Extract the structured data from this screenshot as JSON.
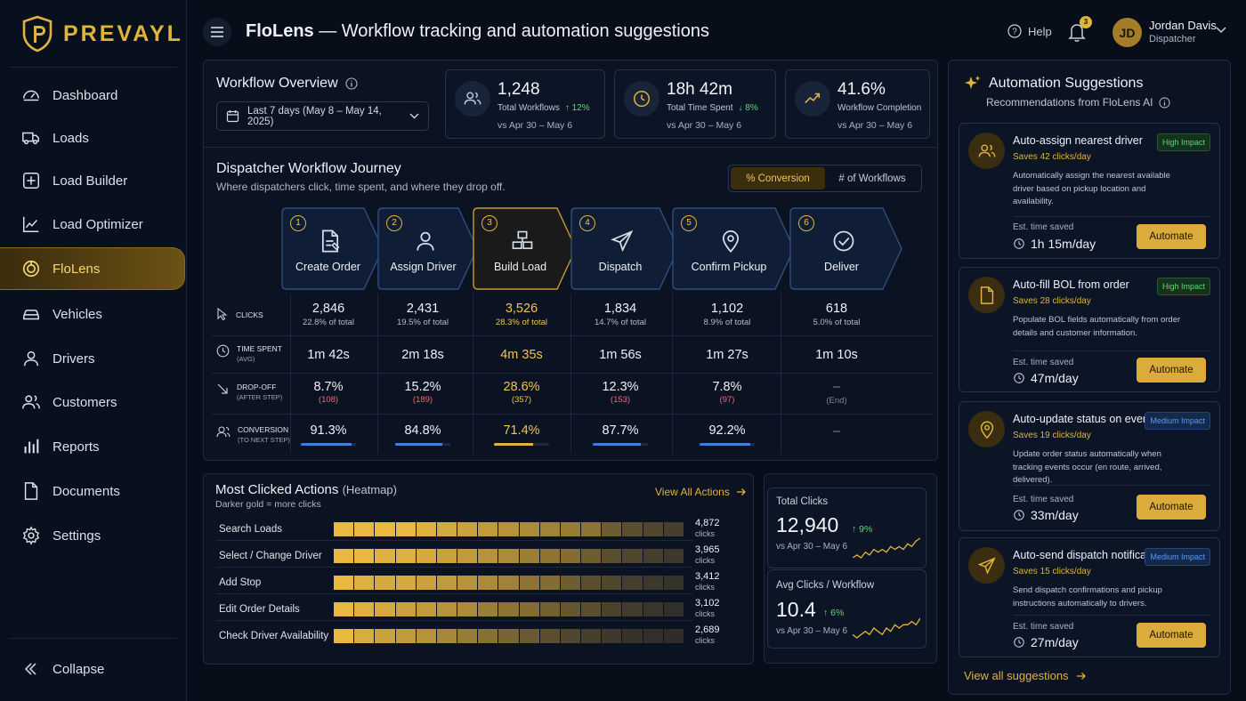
{
  "brand": {
    "name": "PREVAYL",
    "app": "FloLens",
    "subtitle": "— Workflow tracking and automation suggestions"
  },
  "sidebar": {
    "items": [
      {
        "label": "Dashboard",
        "icon": "gauge-icon"
      },
      {
        "label": "Loads",
        "icon": "truck-icon"
      },
      {
        "label": "Load Builder",
        "icon": "plus-square-icon"
      },
      {
        "label": "Load Optimizer",
        "icon": "trend-line-icon"
      },
      {
        "label": "FloLens",
        "icon": "lens-icon",
        "active": true
      },
      {
        "label": "Vehicles",
        "icon": "car-icon"
      },
      {
        "label": "Drivers",
        "icon": "person-icon"
      },
      {
        "label": "Customers",
        "icon": "people-icon"
      },
      {
        "label": "Reports",
        "icon": "bar-chart-icon"
      },
      {
        "label": "Documents",
        "icon": "document-icon"
      },
      {
        "label": "Settings",
        "icon": "gear-icon"
      }
    ],
    "collapse": "Collapse"
  },
  "header": {
    "help": "Help",
    "notifications": "3",
    "user": {
      "initials": "JD",
      "name": "Jordan Davis",
      "role": "Dispatcher"
    }
  },
  "overview": {
    "title": "Workflow Overview",
    "date_range": "Last 7 days (May 8 – May 14, 2025)",
    "kpis": [
      {
        "value": "1,248",
        "label": "Total Workflows",
        "trend": "↑ 12%",
        "compare": "vs Apr 30 – May 6",
        "icon": "users-icon"
      },
      {
        "value": "18h 42m",
        "label": "Total Time Spent",
        "trend": "↓ 8%",
        "compare": "vs Apr 30 – May 6",
        "icon": "clock-icon"
      },
      {
        "value": "41.6%",
        "label": "Workflow Completion",
        "trend": "",
        "compare": "vs Apr 30 – May 6",
        "icon": "trend-up-icon"
      }
    ]
  },
  "journey": {
    "title": "Dispatcher Workflow Journey",
    "subtitle": "Where dispatchers click, time spent, and where they drop off.",
    "toggle": [
      "% Conversion",
      "# of Workflows"
    ],
    "row_labels": {
      "clicks": "CLICKS",
      "time": "TIME SPENT",
      "time_sub": "(AVG)",
      "dropoff": "DROP-OFF",
      "dropoff_sub": "(AFTER STEP)",
      "conversion": "CONVERSION",
      "conversion_sub": "(TO NEXT STEP)"
    },
    "steps": [
      {
        "num": "1",
        "name": "Create Order",
        "clicks": "2,846",
        "share": "22.8% of total",
        "time": "1m 42s",
        "dropoff": "8.7%",
        "dropoff_count": "(108)",
        "conversion": "91.3%",
        "conversion_pct": 91.3
      },
      {
        "num": "2",
        "name": "Assign Driver",
        "clicks": "2,431",
        "share": "19.5% of total",
        "time": "2m 18s",
        "dropoff": "15.2%",
        "dropoff_count": "(189)",
        "conversion": "84.8%",
        "conversion_pct": 84.8
      },
      {
        "num": "3",
        "name": "Build Load",
        "clicks": "3,526",
        "share": "28.3% of total",
        "time": "4m 35s",
        "dropoff": "28.6%",
        "dropoff_count": "(357)",
        "conversion": "71.4%",
        "conversion_pct": 71.4,
        "highlight": true
      },
      {
        "num": "4",
        "name": "Dispatch",
        "clicks": "1,834",
        "share": "14.7% of total",
        "time": "1m 56s",
        "dropoff": "12.3%",
        "dropoff_count": "(153)",
        "conversion": "87.7%",
        "conversion_pct": 87.7
      },
      {
        "num": "5",
        "name": "Confirm Pickup",
        "clicks": "1,102",
        "share": "8.9% of total",
        "time": "1m 27s",
        "dropoff": "7.8%",
        "dropoff_count": "(97)",
        "conversion": "92.2%",
        "conversion_pct": 92.2
      },
      {
        "num": "6",
        "name": "Deliver",
        "clicks": "618",
        "share": "5.0% of total",
        "time": "1m 10s",
        "dropoff": "–",
        "dropoff_count": "(End)",
        "conversion": "–",
        "conversion_pct": null
      }
    ]
  },
  "heatmap": {
    "title": "Most Clicked Actions",
    "title_suffix": "(Heatmap)",
    "subtitle": "Darker gold = more clicks",
    "view_all": "View All Actions",
    "unit": "clicks",
    "rows": [
      {
        "label": "Search Loads",
        "count": "4,872",
        "intensity": [
          1,
          1,
          1,
          1,
          0.95,
          0.9,
          0.85,
          0.8,
          0.75,
          0.7,
          0.65,
          0.6,
          0.55,
          0.4,
          0.3,
          0.25,
          0.2
        ]
      },
      {
        "label": "Select / Change Driver",
        "count": "3,965",
        "intensity": [
          1,
          1,
          0.95,
          0.95,
          0.9,
          0.85,
          0.8,
          0.75,
          0.7,
          0.62,
          0.55,
          0.5,
          0.4,
          0.3,
          0.25,
          0.2,
          0.15
        ]
      },
      {
        "label": "Add Stop",
        "count": "3,412",
        "intensity": [
          1,
          0.95,
          0.9,
          0.9,
          0.85,
          0.8,
          0.75,
          0.7,
          0.65,
          0.55,
          0.5,
          0.4,
          0.3,
          0.25,
          0.2,
          0.15,
          0.12
        ]
      },
      {
        "label": "Edit Order Details",
        "count": "3,102",
        "intensity": [
          1,
          0.95,
          0.9,
          0.85,
          0.8,
          0.75,
          0.7,
          0.62,
          0.55,
          0.5,
          0.42,
          0.35,
          0.3,
          0.22,
          0.18,
          0.14,
          0.1
        ]
      },
      {
        "label": "Check Driver Availability",
        "count": "2,689",
        "intensity": [
          1,
          0.92,
          0.85,
          0.8,
          0.75,
          0.68,
          0.6,
          0.52,
          0.45,
          0.38,
          0.3,
          0.25,
          0.2,
          0.16,
          0.12,
          0.1,
          0.08
        ]
      }
    ]
  },
  "totals": [
    {
      "label": "Total Clicks",
      "value": "12,940",
      "trend": "↑ 9%",
      "compare": "vs Apr 30 – May 6",
      "spark": [
        3,
        4,
        3,
        5,
        4,
        6,
        5,
        6,
        5,
        7,
        6,
        7,
        6,
        8,
        7,
        9,
        10
      ]
    },
    {
      "label": "Avg Clicks / Workflow",
      "value": "10.4",
      "trend": "↑ 6%",
      "compare": "vs Apr 30 – May 6",
      "spark": [
        3,
        2,
        3,
        4,
        3,
        5,
        4,
        3,
        5,
        4,
        6,
        5,
        6,
        6,
        7,
        6,
        8
      ]
    }
  ],
  "automation": {
    "title": "Automation Suggestions",
    "subtitle": "Recommendations from FloLens AI",
    "est_label": "Est. time saved",
    "action_label": "Automate",
    "view_all": "View all suggestions",
    "items": [
      {
        "title": "Auto-assign nearest driver",
        "saves": "Saves 42 clicks/day",
        "badge": "High Impact",
        "level": "high",
        "desc": "Automatically assign the nearest available driver based on pickup location and availability.",
        "time": "1h 15m/day",
        "icon": "users-icon"
      },
      {
        "title": "Auto-fill BOL from order",
        "saves": "Saves 28 clicks/day",
        "badge": "High Impact",
        "level": "high",
        "desc": "Populate BOL fields automatically from order details and customer information.",
        "time": "47m/day",
        "icon": "document-icon"
      },
      {
        "title": "Auto-update status on events",
        "saves": "Saves 19 clicks/day",
        "badge": "Medium Impact",
        "level": "med",
        "desc": "Update order status automatically when tracking events occur (en route, arrived, delivered).",
        "time": "33m/day",
        "icon": "map-pin-icon"
      },
      {
        "title": "Auto-send dispatch notifications",
        "saves": "Saves 15 clicks/day",
        "badge": "Medium Impact",
        "level": "med",
        "desc": "Send dispatch confirmations and pickup instructions automatically to drivers.",
        "time": "27m/day",
        "icon": "send-icon"
      }
    ]
  },
  "colors": {
    "gold": "#e0b43c",
    "background": "#070d19",
    "panel": "#0b1322",
    "positive": "#5fd77b",
    "negative": "#f06a6a",
    "progress": "#3d7ee0"
  }
}
